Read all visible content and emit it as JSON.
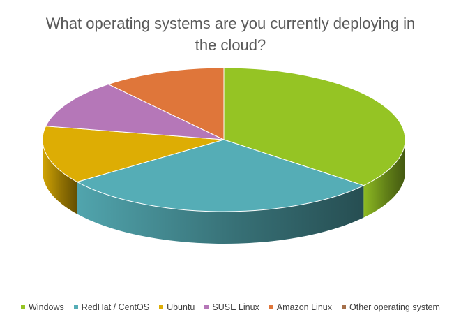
{
  "chart_data": {
    "type": "pie",
    "title": "What operating systems are you currently deploying in the cloud?",
    "style": "3d",
    "categories": [
      "Windows",
      "RedHat / CentOS",
      "Ubuntu",
      "SUSE Linux",
      "Amazon Linux",
      "Other operating system"
    ],
    "values": [
      36,
      29,
      13,
      11,
      11,
      0
    ],
    "colors": [
      "#95c424",
      "#55adb6",
      "#ddad04",
      "#b577b8",
      "#df763a",
      "#a5704a"
    ],
    "legend_position": "bottom"
  }
}
